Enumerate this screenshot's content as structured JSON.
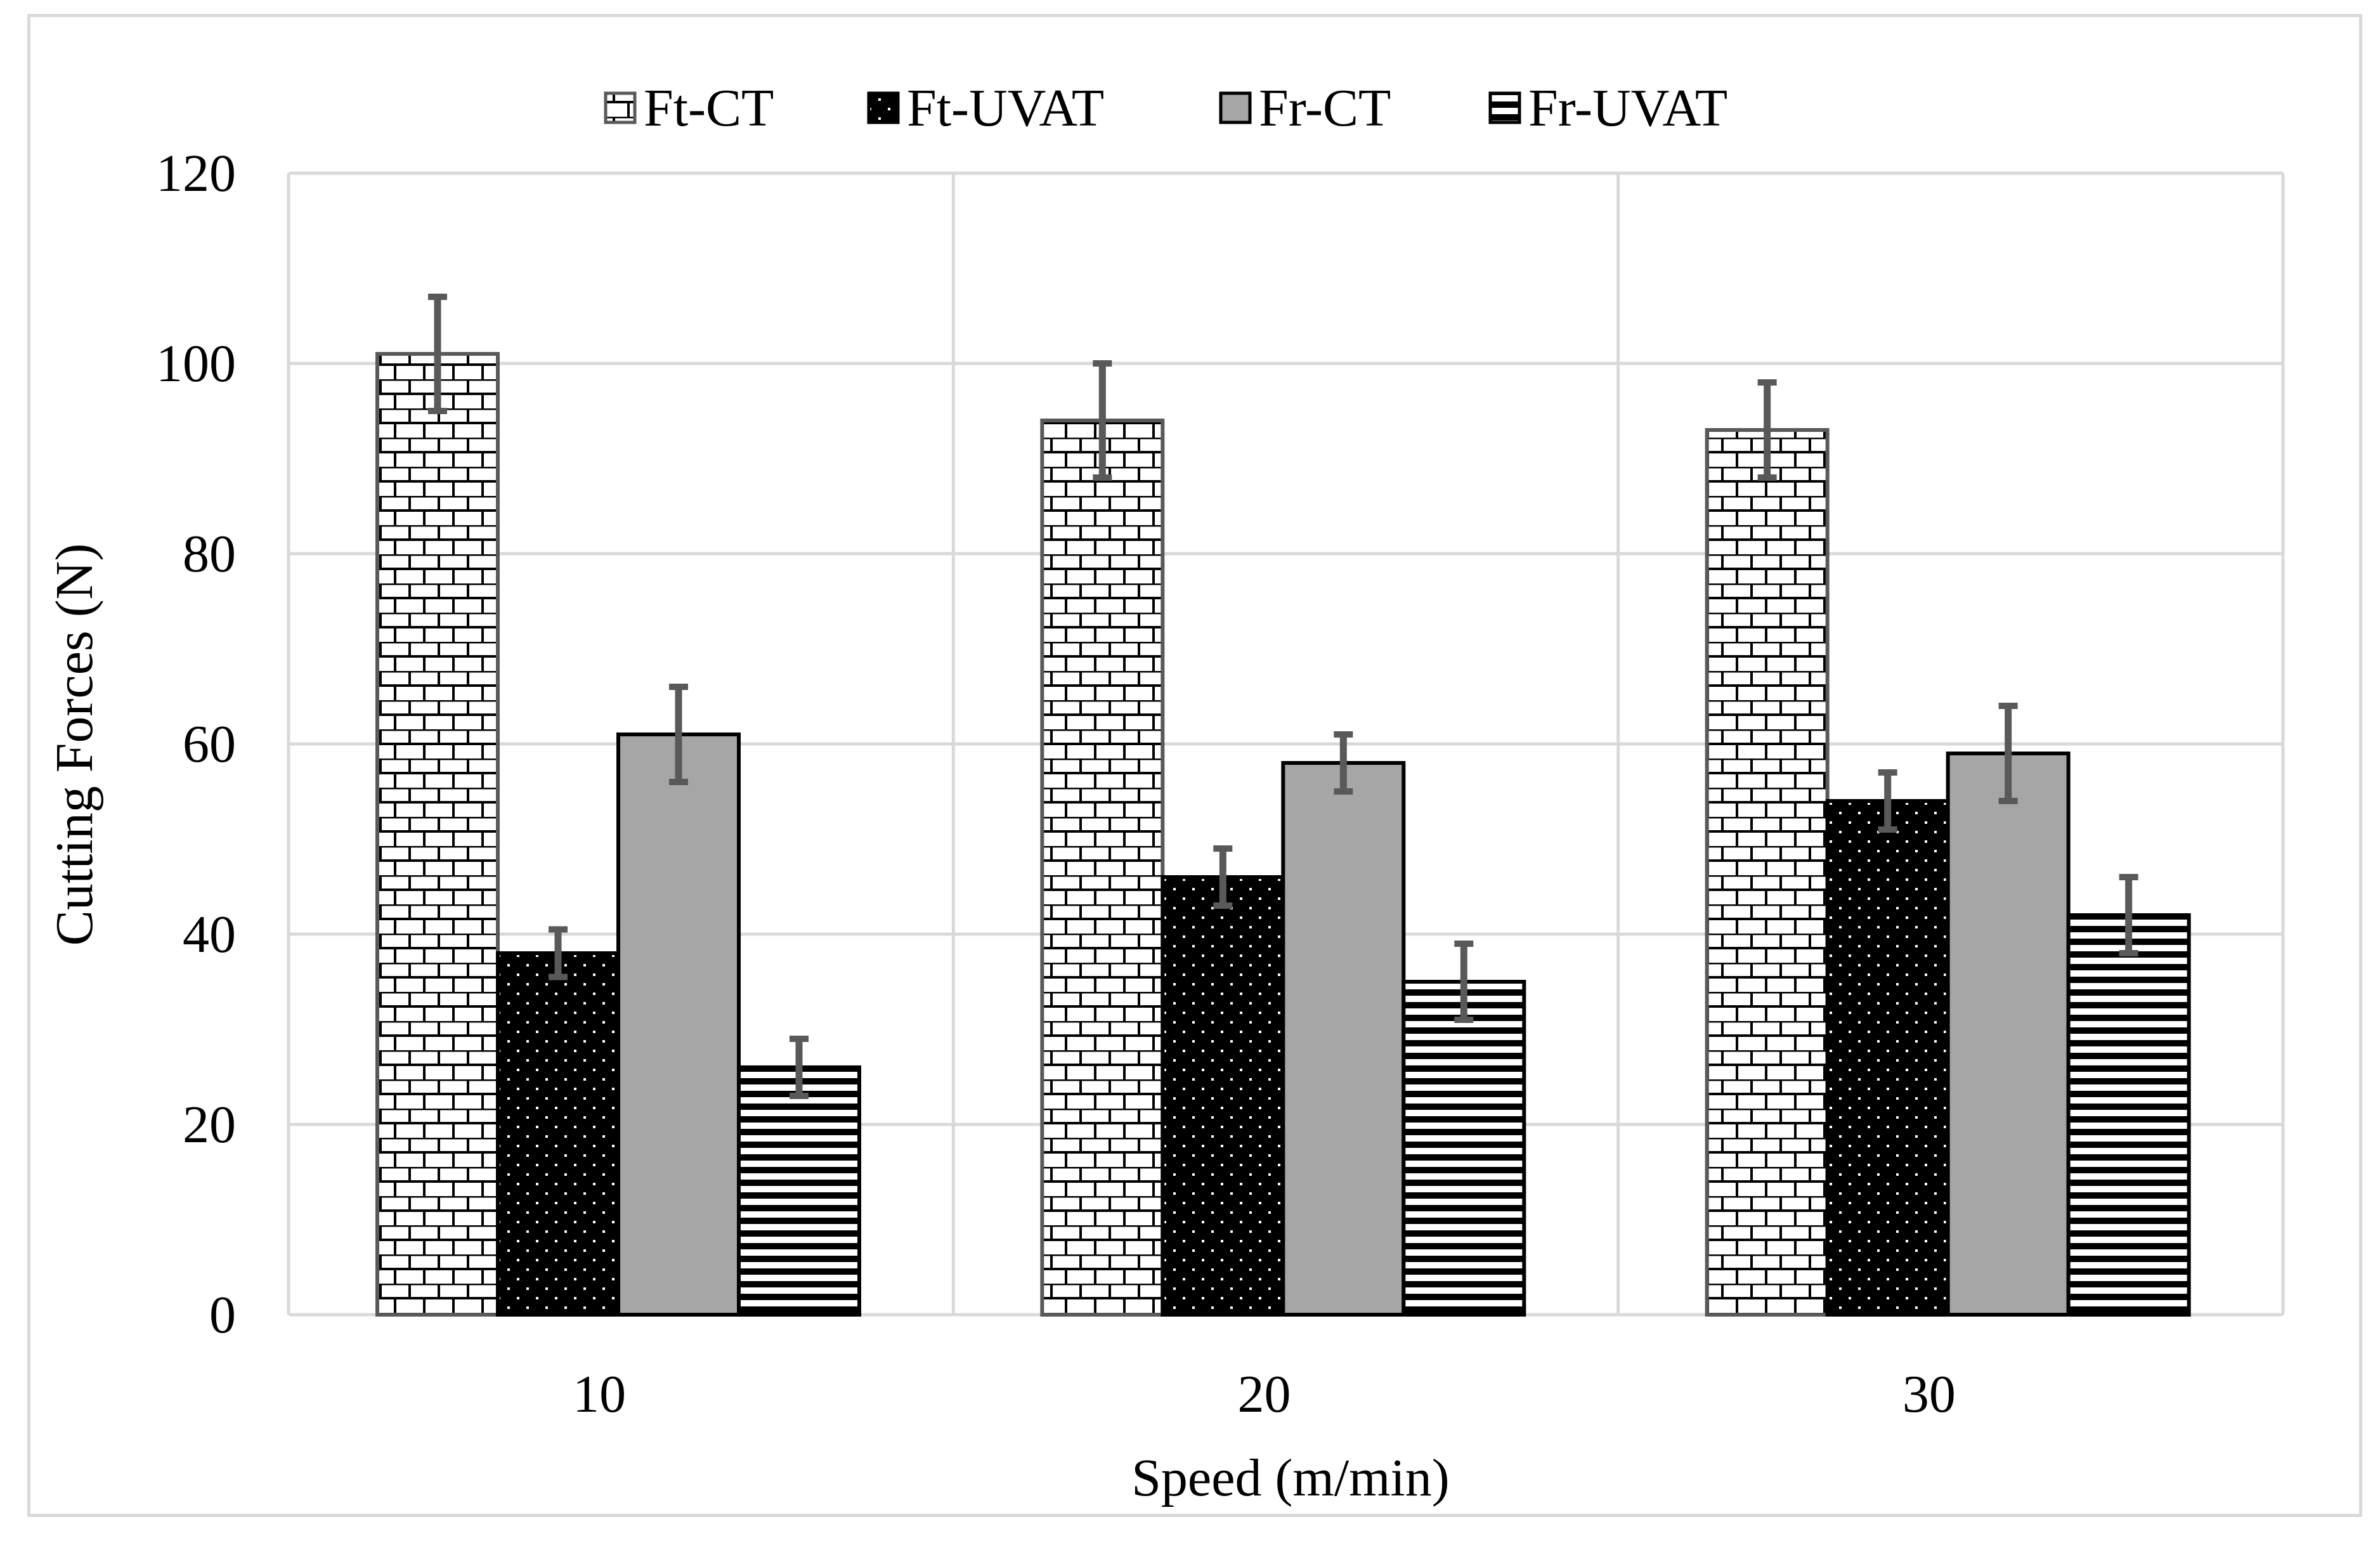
{
  "chart_data": {
    "type": "bar",
    "title": "",
    "xlabel": "Speed (m/min)",
    "ylabel": "Cutting Forces (N)",
    "categories": [
      "10",
      "20",
      "30"
    ],
    "ylim": [
      0,
      120
    ],
    "yticks": [
      "0",
      "20",
      "40",
      "60",
      "80",
      "100",
      "120"
    ],
    "ytick_values": [
      0,
      20,
      40,
      60,
      80,
      100,
      120
    ],
    "grid": true,
    "legend_position": "top",
    "series": [
      {
        "name": "Ft-CT",
        "values": [
          101,
          94,
          93
        ],
        "error": [
          6,
          6,
          5
        ],
        "pattern": "brick"
      },
      {
        "name": "Ft-UVAT",
        "values": [
          38,
          46,
          54
        ],
        "error": [
          2.5,
          3,
          3
        ],
        "pattern": "dots"
      },
      {
        "name": "Fr-CT",
        "values": [
          61,
          58,
          59
        ],
        "error": [
          5,
          3,
          5
        ],
        "pattern": "solid-gray"
      },
      {
        "name": "Fr-UVAT",
        "values": [
          26,
          35,
          42
        ],
        "error": [
          3,
          4,
          4
        ],
        "pattern": "horizontal-lines"
      }
    ],
    "colors": {
      "grid": "#d9d9d9",
      "bar_outline": "#000000",
      "brick_outline": "#595959",
      "gray_fill": "#a6a6a6",
      "error_bar": "#595959"
    }
  }
}
